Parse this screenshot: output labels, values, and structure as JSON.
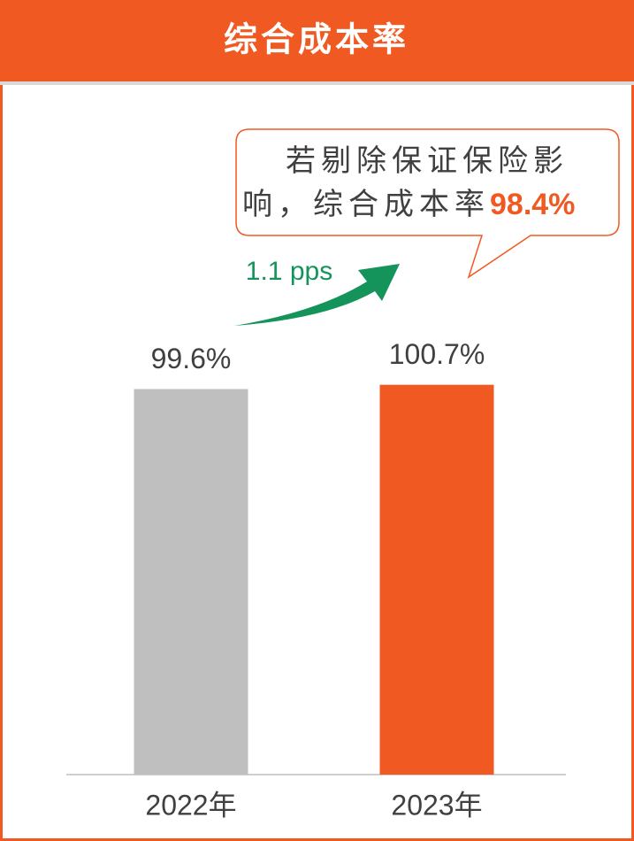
{
  "chart_data": {
    "type": "bar",
    "title": "综合成本率",
    "categories": [
      "2022年",
      "2023年"
    ],
    "values": [
      99.6,
      100.7
    ],
    "value_labels": [
      "99.6%",
      "100.7%"
    ],
    "colors": [
      "#bfbfbf",
      "#f05a22"
    ],
    "ylim": [
      0,
      110
    ],
    "annotation_lines": [
      "若剔除保证保险影",
      "响，综合成本率"
    ],
    "annotation_value": "98.4%",
    "change_label": "1.1 pps"
  }
}
